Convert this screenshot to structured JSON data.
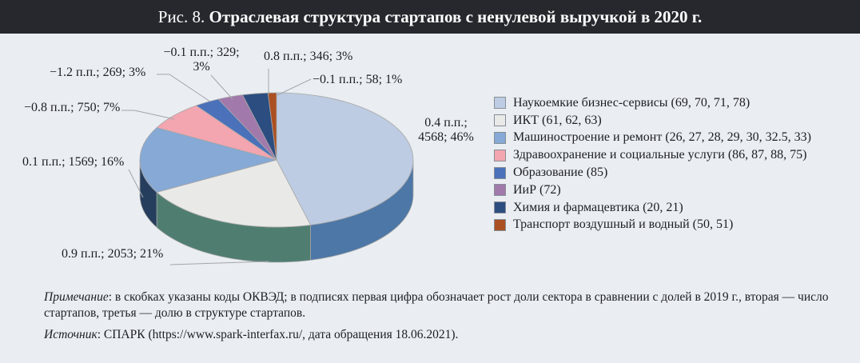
{
  "title": {
    "prefix": "Рис. 8. ",
    "text": "Отраслевая структура стартапов с ненулевой выручкой в 2020 г."
  },
  "note": {
    "prefix": "Примечание",
    "body": ": в скобках указаны коды ОКВЭД; в подписях первая цифра обозначает рост доли сектора в сравнении с долей в 2019 г., вторая — число стартапов, третья — долю в структуре стартапов."
  },
  "source": {
    "prefix": "Источник",
    "body": ": СПАРК (https://www.spark-interfax.ru/, дата обращения 18.06.2021)."
  },
  "colors": {
    "panel_bg": "#eaeef2",
    "titlebar_bg": "#26282d",
    "titlebar_text": "#ffffff",
    "text": "#1c1e22",
    "leader_line": "#a2a6ab",
    "slice_outline": "#a8a8a8"
  },
  "chart_data": {
    "type": "pie",
    "title": "Отраслевая структура стартапов с ненулевой выручкой в 2020 г.",
    "style": "3d-pie",
    "start_angle_deg": 0,
    "direction": "clockwise",
    "legend_position": "right",
    "slices": [
      {
        "name": "Наукоемкие бизнес-сервисы (69, 70, 71, 78)",
        "delta_pp": 0.4,
        "count": 4568,
        "share_pct": 46,
        "label_lines": [
          "0.4 п.п.;",
          "4568; 46%"
        ],
        "color": "#bdcce2",
        "side_color": "#4d77a6"
      },
      {
        "name": "ИКТ (61, 62, 63)",
        "delta_pp": 0.9,
        "count": 2053,
        "share_pct": 21,
        "label_lines": [
          "0.9 п.п.; 2053; 21%"
        ],
        "color": "#e9e9e7",
        "side_color": "#4f7e70"
      },
      {
        "name": "Машиностроение и ремонт (26, 27, 28, 29, 30, 32.5, 33)",
        "delta_pp": 0.1,
        "count": 1569,
        "share_pct": 16,
        "label_lines": [
          "0.1 п.п.; 1569; 16%"
        ],
        "color": "#86a9d5",
        "side_color": "#263e5d"
      },
      {
        "name": "Здравоохранение и социальные услуги (86, 87, 88, 75)",
        "delta_pp": -0.8,
        "count": 750,
        "share_pct": 7,
        "label_lines": [
          "−0.8 п.п.; 750; 7%"
        ],
        "color": "#f3a5b0"
      },
      {
        "name": "Образование (85)",
        "delta_pp": -1.2,
        "count": 269,
        "share_pct": 3,
        "label_lines": [
          "−1.2 п.п.; 269; 3%"
        ],
        "color": "#4a71b9"
      },
      {
        "name": "ИиР (72)",
        "delta_pp": -0.1,
        "count": 329,
        "share_pct": 3,
        "label_lines": [
          "−0.1 п.п.; 329;",
          "3%"
        ],
        "color": "#a279ab"
      },
      {
        "name": "Химия и фармацевтика (20, 21)",
        "delta_pp": 0.8,
        "count": 346,
        "share_pct": 3,
        "label_lines": [
          "0.8 п.п.; 346; 3%"
        ],
        "color": "#2c4d80"
      },
      {
        "name": "Транспорт воздушный и водный (50, 51)",
        "delta_pp": -0.1,
        "count": 58,
        "share_pct": 1,
        "label_lines": [
          "−0.1 п.п.; 58; 1%"
        ],
        "color": "#ab5022"
      }
    ]
  }
}
